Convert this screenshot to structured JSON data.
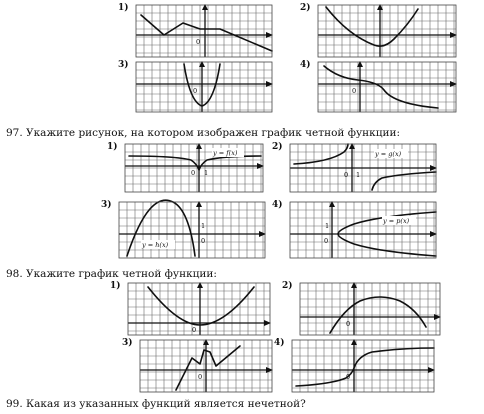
{
  "questions": [
    {
      "id": "q97",
      "text": "97. Укажите рисунок, на котором изображен график четной функции:"
    },
    {
      "id": "q98",
      "text": "98. Укажите график четной функции:"
    },
    {
      "id": "q99",
      "text": "99. Какая из указанных функций является нечетной?"
    }
  ],
  "panels": [
    {
      "num": "1)",
      "func": "",
      "origin": "0"
    },
    {
      "num": "2)",
      "func": "",
      "origin": ""
    },
    {
      "num": "3)",
      "func": "",
      "origin": "0"
    },
    {
      "num": "4)",
      "func": "",
      "origin": "0"
    },
    {
      "num": "1)",
      "func": "y = f(x)",
      "origin": "0",
      "tick_x": "1",
      "tick_y": "1"
    },
    {
      "num": "2)",
      "func": "y = g(x)",
      "origin": "0",
      "tick_x": "1",
      "tick_y": "1"
    },
    {
      "num": "3)",
      "func": "y = h(x)",
      "origin": "0",
      "tick_x": "1",
      "tick_y": "1"
    },
    {
      "num": "4)",
      "func": "y = p(x)",
      "origin": "0",
      "tick_x": "1",
      "tick_y": "1"
    },
    {
      "num": "1)",
      "func": "",
      "origin": "0"
    },
    {
      "num": "2)",
      "func": "",
      "origin": "0"
    },
    {
      "num": "3)",
      "func": "",
      "origin": "0"
    },
    {
      "num": "4)",
      "func": "",
      "origin": "0"
    }
  ]
}
